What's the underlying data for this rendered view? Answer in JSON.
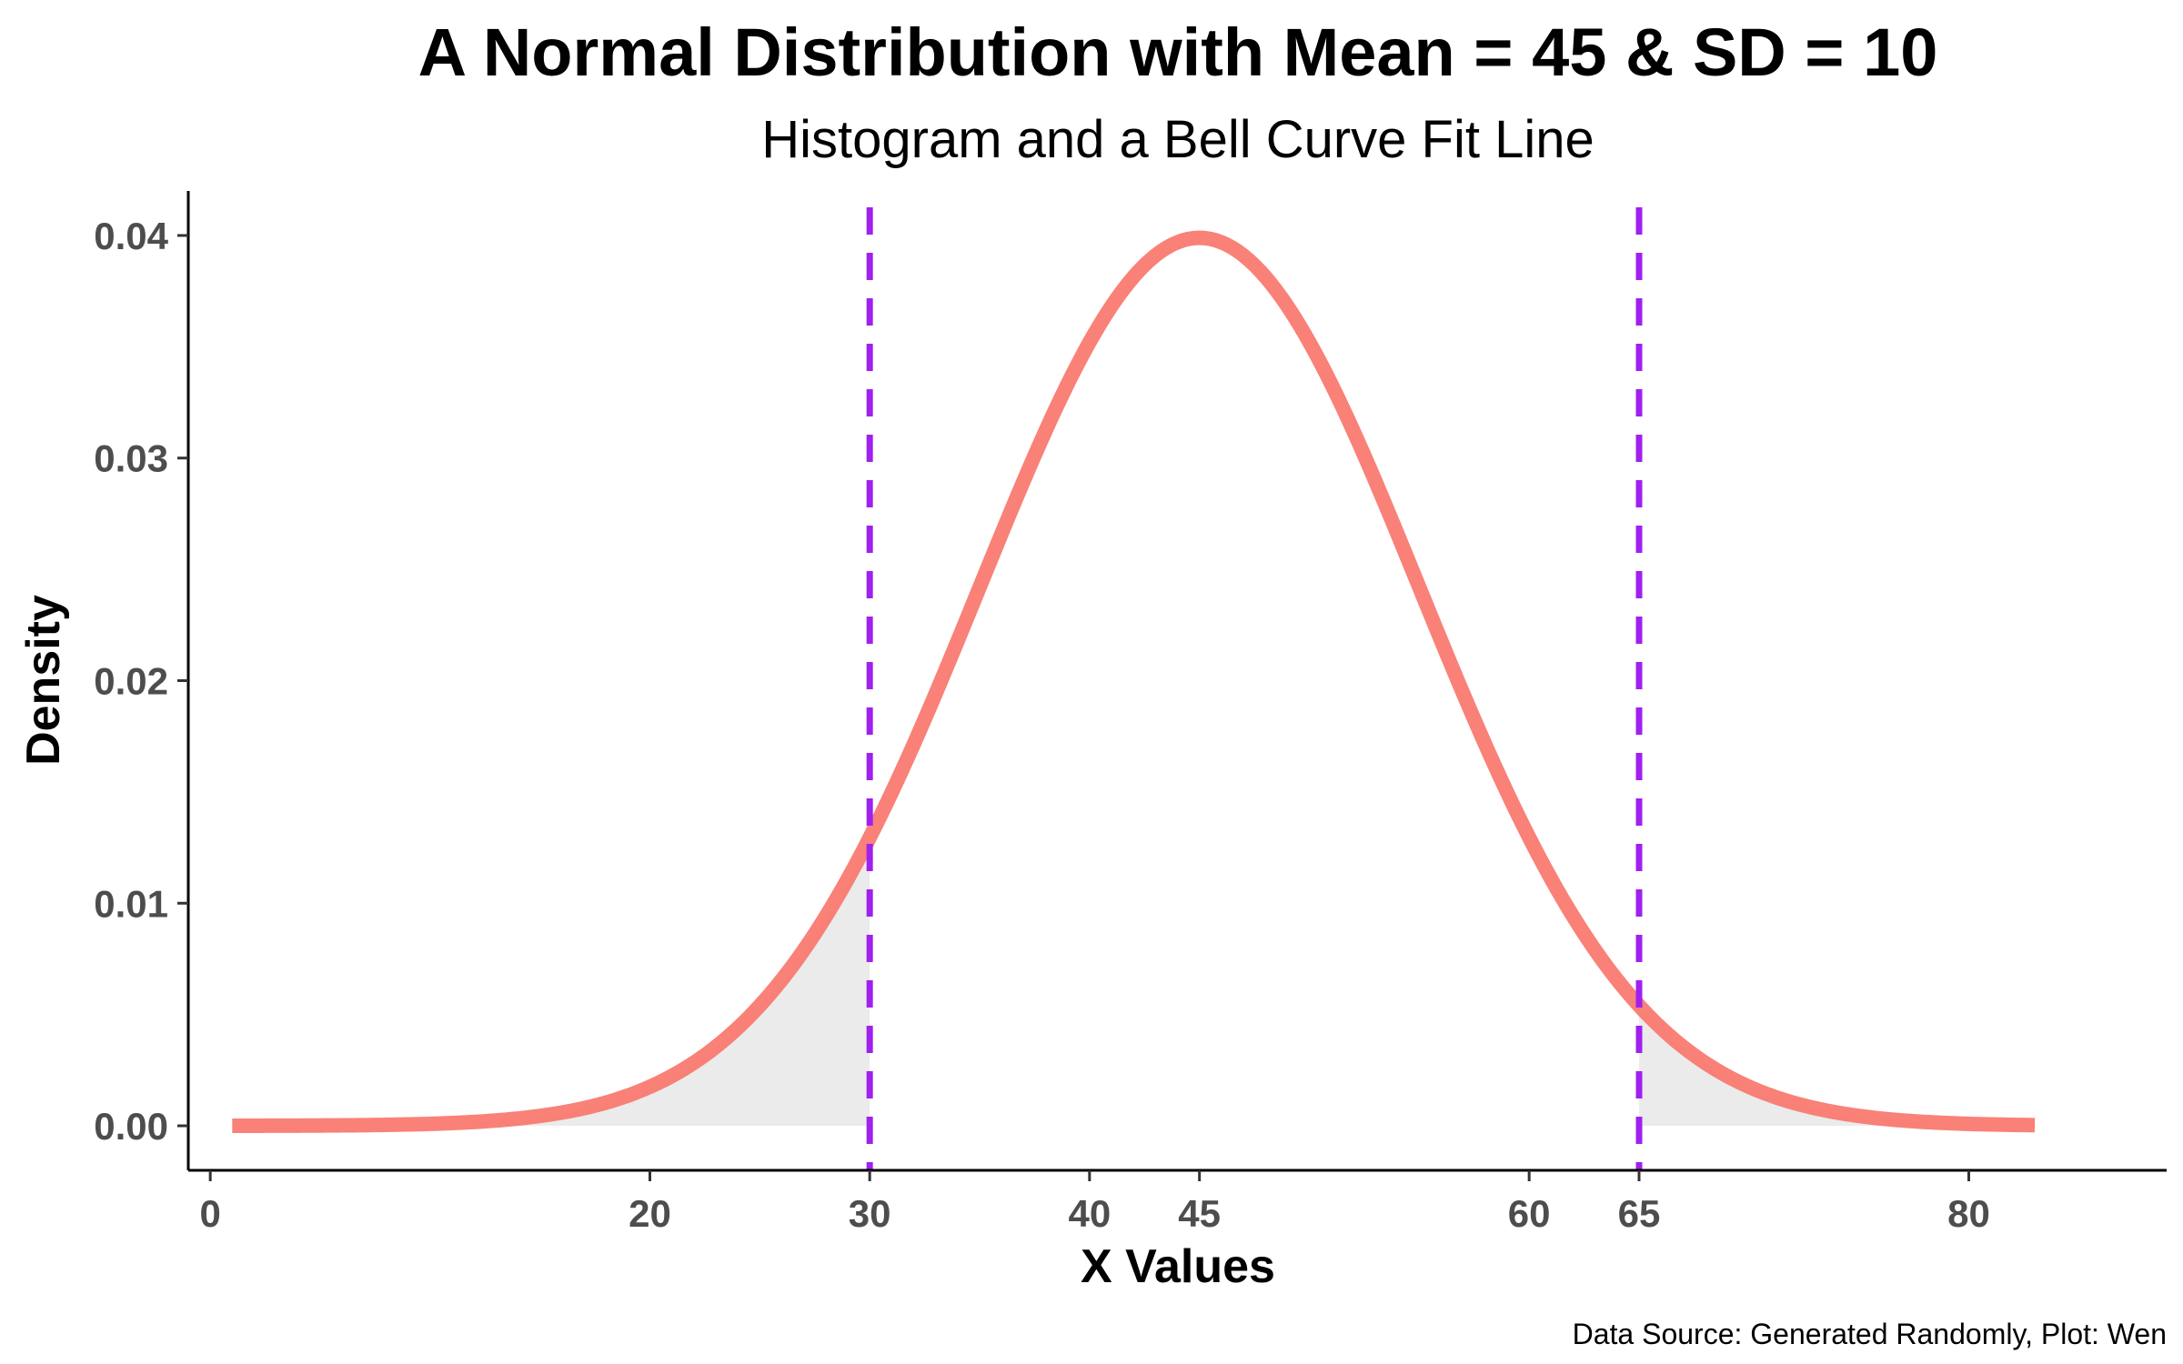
{
  "chart_data": {
    "type": "area",
    "title": "A Normal Distribution with Mean = 45 & SD = 10",
    "subtitle": "Histogram and a Bell Curve Fit Line",
    "xlabel": "X Values",
    "ylabel": "Density",
    "caption": "Data Source: Generated Randomly, Plot: Wen",
    "distribution": {
      "mean": 45,
      "sd": 10
    },
    "xlim": [
      -1,
      89
    ],
    "ylim": [
      -0.002,
      0.042
    ],
    "x_range_curve": [
      1,
      83
    ],
    "x_ticks": [
      0,
      20,
      30,
      40,
      45,
      60,
      65,
      80
    ],
    "x_tick_labels": [
      "0",
      "20",
      "30",
      "40",
      "45",
      "60",
      "65",
      "80"
    ],
    "y_ticks": [
      0,
      0.01,
      0.02,
      0.03,
      0.04
    ],
    "y_tick_labels": [
      "0.00",
      "0.01",
      "0.02",
      "0.03",
      "0.04"
    ],
    "reference_lines": [
      30,
      65
    ],
    "shaded_regions": [
      [
        1,
        30
      ],
      [
        65,
        83
      ]
    ],
    "grid": false,
    "legend": "none",
    "colors": {
      "curve": "#f8766d",
      "reference_line": "#a020f0",
      "shade": "#ebebeb",
      "axis": "#000000"
    }
  }
}
